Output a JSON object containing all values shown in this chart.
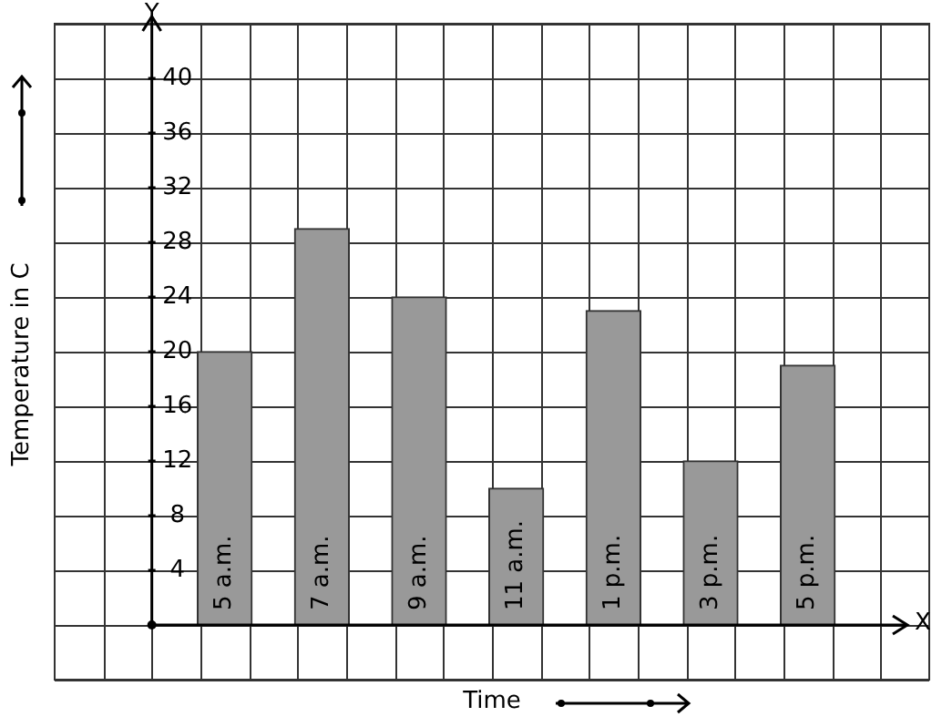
{
  "chart_data": {
    "type": "bar",
    "xlabel": "Time",
    "ylabel": "Temperature in C",
    "categories": [
      "5 a.m.",
      "7 a.m.",
      "9 a.m.",
      "11 a.m.",
      "1 p.m.",
      "3 p.m.",
      "5 p.m."
    ],
    "values": [
      20,
      29,
      24,
      10,
      23,
      12,
      19
    ],
    "color": "#999999",
    "ylim": [
      -4,
      44
    ],
    "yticks": [
      {
        "value": -4,
        "label": null
      },
      {
        "value": 0,
        "label": null
      },
      4,
      8,
      12,
      16,
      20,
      24,
      28,
      32,
      36,
      40,
      {
        "value": 44,
        "label": null
      }
    ],
    "grid": true,
    "annotations": [
      "Y",
      "X"
    ]
  }
}
